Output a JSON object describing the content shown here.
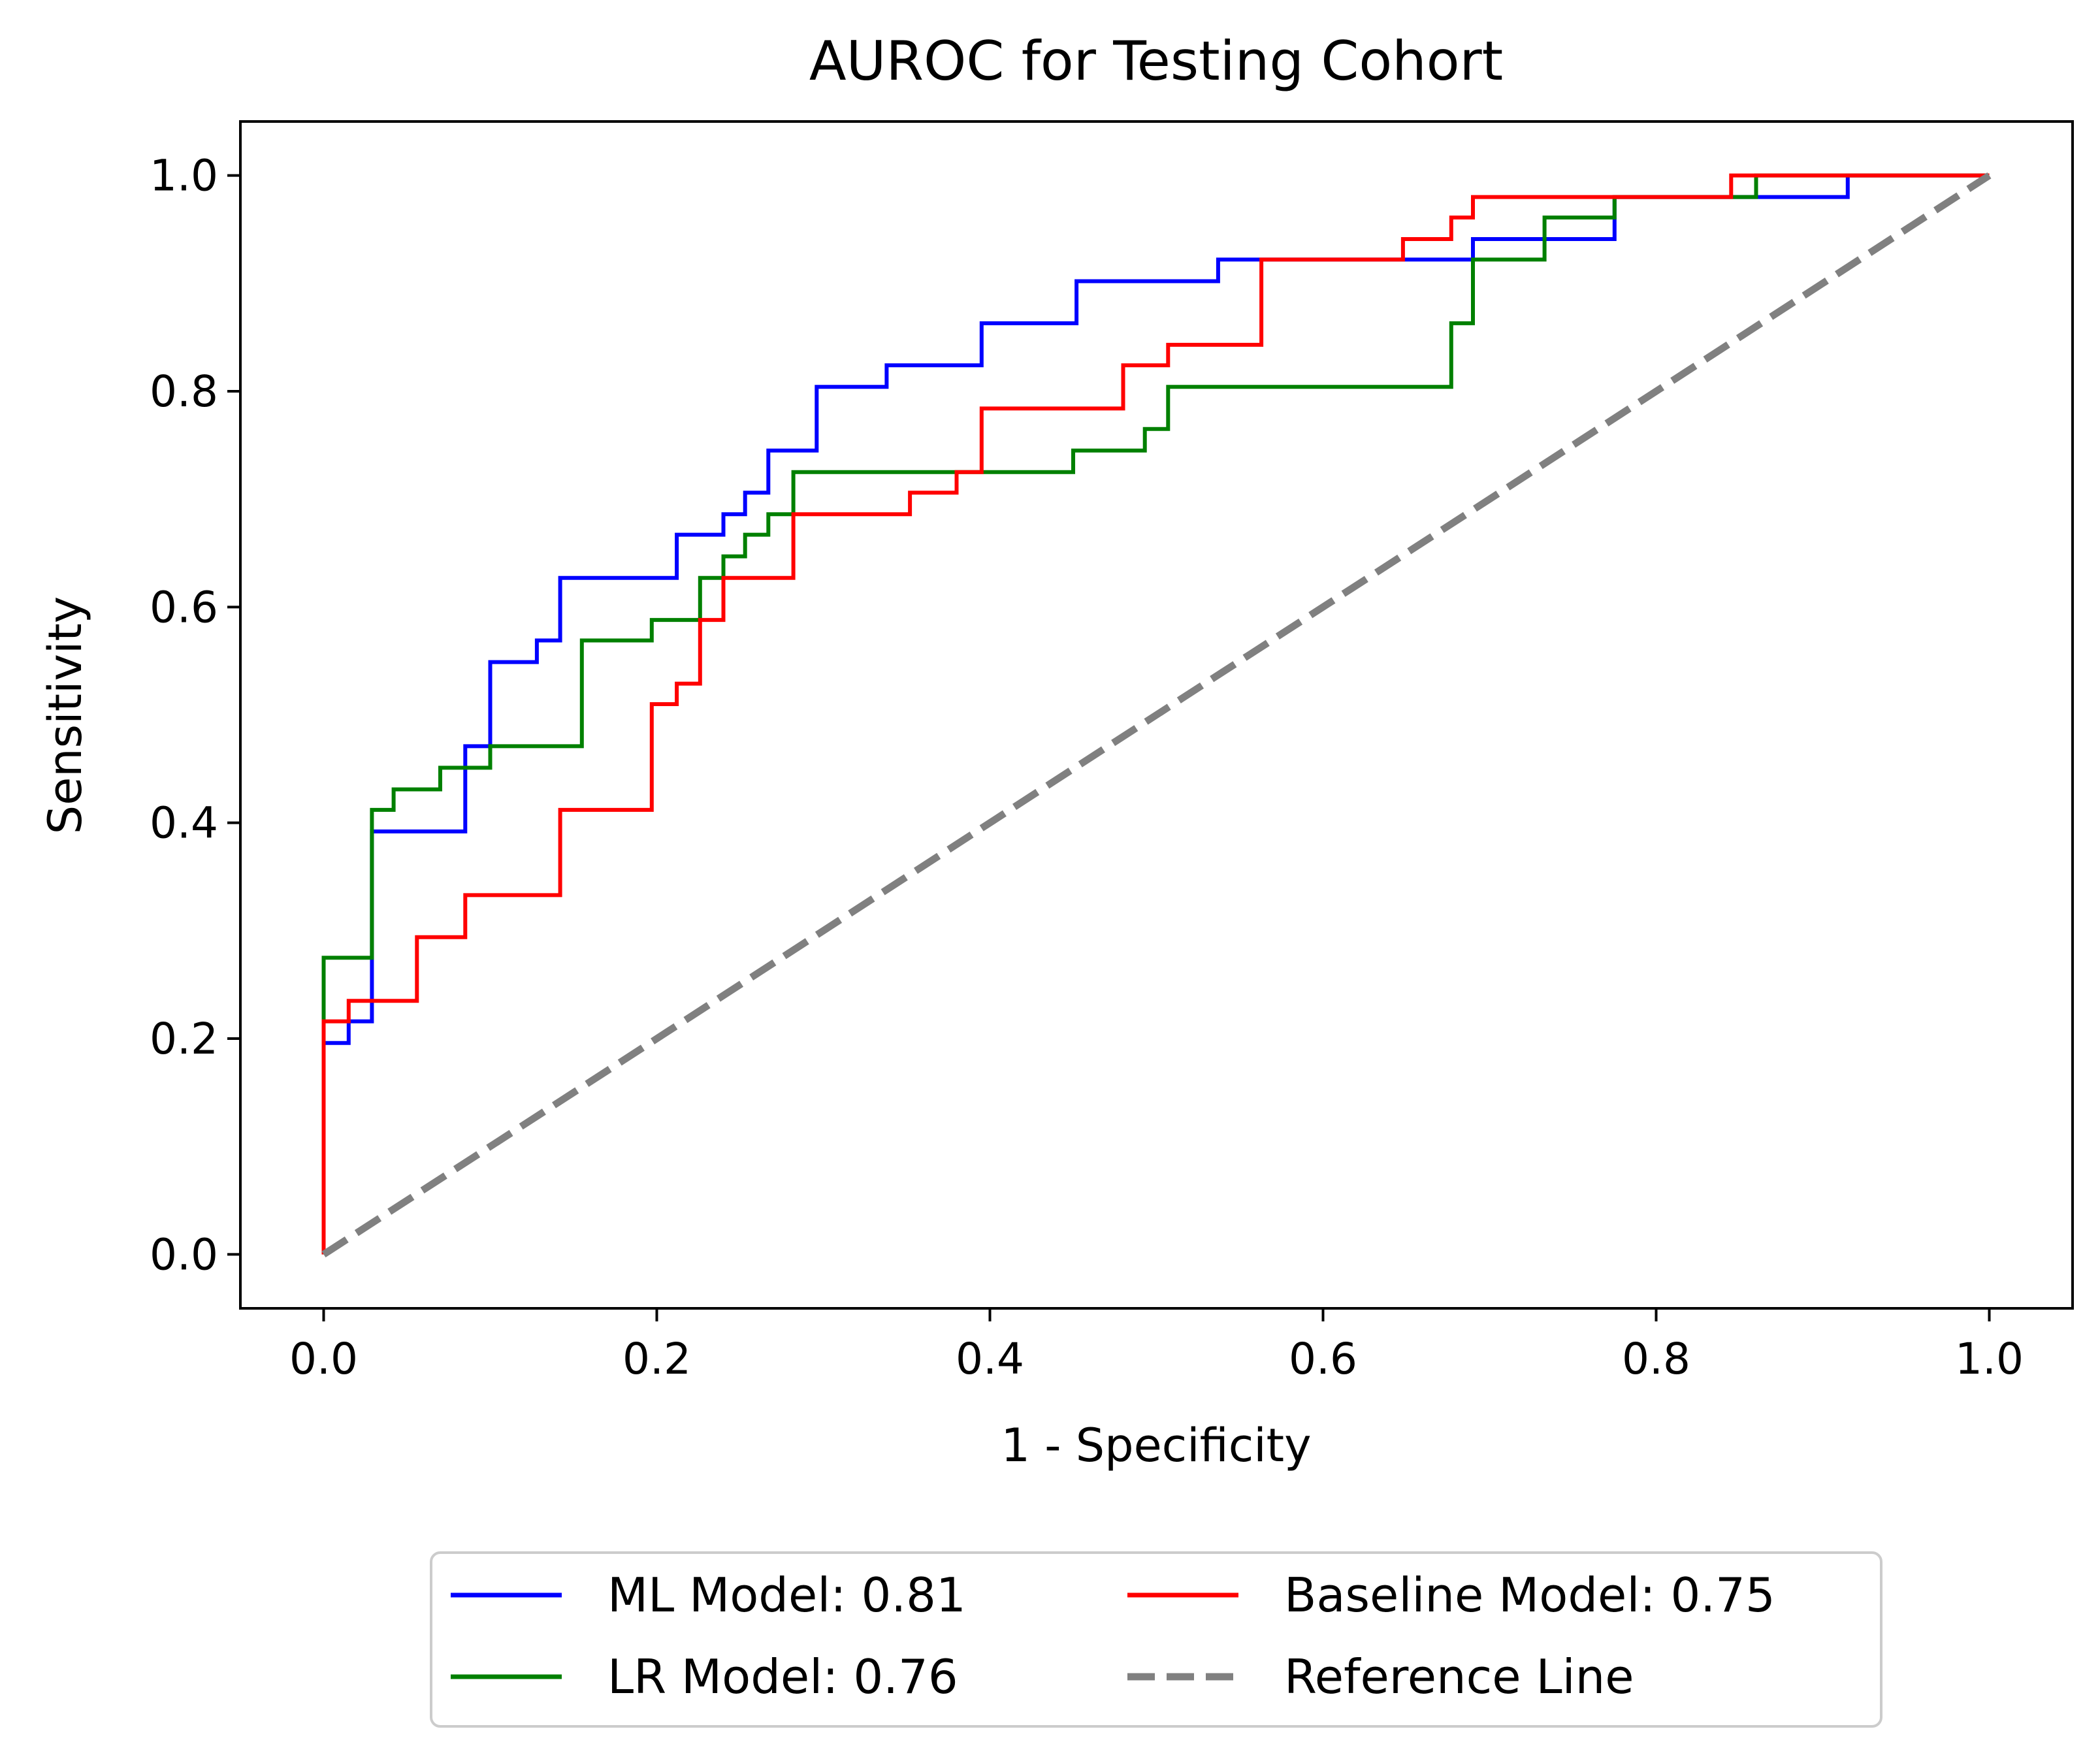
{
  "chart_data": {
    "type": "line",
    "title": "AUROC for Testing Cohort",
    "xlabel": "1 - Specificity",
    "ylabel": "Sensitivity",
    "xlim": [
      -0.05,
      1.05
    ],
    "ylim": [
      -0.05,
      1.05
    ],
    "x_ticks": [
      0.0,
      0.2,
      0.4,
      0.6,
      0.8,
      1.0
    ],
    "y_ticks": [
      0.0,
      0.2,
      0.4,
      0.6,
      0.8,
      1.0
    ],
    "x_tick_labels": [
      "0.0",
      "0.2",
      "0.4",
      "0.6",
      "0.8",
      "1.0"
    ],
    "y_tick_labels": [
      "0.0",
      "0.2",
      "0.4",
      "0.6",
      "0.8",
      "1.0"
    ],
    "grid": false,
    "legend_placement": "bottom-center, below plot, two columns",
    "series": [
      {
        "name": "ML Model: 0.81",
        "color": "#0000ff",
        "style": "solid",
        "x": [
          0,
          0,
          0.015,
          0.015,
          0.029,
          0.029,
          0.085,
          0.085,
          0.1,
          0.1,
          0.128,
          0.128,
          0.142,
          0.142,
          0.212,
          0.212,
          0.24,
          0.24,
          0.253,
          0.253,
          0.267,
          0.267,
          0.296,
          0.296,
          0.338,
          0.338,
          0.395,
          0.395,
          0.452,
          0.452,
          0.537,
          0.537,
          0.69,
          0.69,
          0.775,
          0.775,
          0.86,
          0.86,
          0.915,
          0.915,
          1.0
        ],
        "y": [
          0,
          0.196,
          0.196,
          0.216,
          0.216,
          0.392,
          0.392,
          0.471,
          0.471,
          0.549,
          0.549,
          0.569,
          0.569,
          0.627,
          0.627,
          0.667,
          0.667,
          0.686,
          0.686,
          0.706,
          0.706,
          0.745,
          0.745,
          0.804,
          0.804,
          0.824,
          0.824,
          0.863,
          0.863,
          0.902,
          0.902,
          0.922,
          0.922,
          0.941,
          0.941,
          0.98,
          0.98,
          0.98,
          0.98,
          1.0,
          1.0
        ]
      },
      {
        "name": "LR Model: 0.76",
        "color": "#008000",
        "style": "solid",
        "x": [
          0,
          0,
          0.029,
          0.029,
          0.042,
          0.042,
          0.07,
          0.07,
          0.1,
          0.1,
          0.155,
          0.155,
          0.197,
          0.197,
          0.226,
          0.226,
          0.24,
          0.24,
          0.253,
          0.253,
          0.267,
          0.267,
          0.282,
          0.282,
          0.45,
          0.45,
          0.493,
          0.493,
          0.507,
          0.507,
          0.677,
          0.677,
          0.69,
          0.69,
          0.733,
          0.733,
          0.775,
          0.775,
          0.86,
          0.86,
          1.0
        ],
        "y": [
          0,
          0.275,
          0.275,
          0.412,
          0.412,
          0.431,
          0.431,
          0.451,
          0.451,
          0.471,
          0.471,
          0.569,
          0.569,
          0.588,
          0.588,
          0.627,
          0.627,
          0.647,
          0.647,
          0.667,
          0.667,
          0.686,
          0.686,
          0.725,
          0.725,
          0.745,
          0.745,
          0.765,
          0.765,
          0.804,
          0.804,
          0.863,
          0.863,
          0.922,
          0.922,
          0.961,
          0.961,
          0.98,
          0.98,
          1.0,
          1.0
        ]
      },
      {
        "name": "Baseline Model: 0.75",
        "color": "#ff0000",
        "style": "solid",
        "x": [
          0,
          0,
          0.015,
          0.015,
          0.056,
          0.056,
          0.085,
          0.085,
          0.142,
          0.142,
          0.197,
          0.197,
          0.212,
          0.212,
          0.226,
          0.226,
          0.24,
          0.24,
          0.282,
          0.282,
          0.352,
          0.352,
          0.38,
          0.38,
          0.395,
          0.395,
          0.48,
          0.48,
          0.507,
          0.507,
          0.563,
          0.563,
          0.648,
          0.648,
          0.677,
          0.677,
          0.69,
          0.69,
          0.845,
          0.845,
          1.0
        ],
        "y": [
          0,
          0.216,
          0.216,
          0.235,
          0.235,
          0.294,
          0.294,
          0.333,
          0.333,
          0.412,
          0.412,
          0.51,
          0.51,
          0.529,
          0.529,
          0.588,
          0.588,
          0.627,
          0.627,
          0.686,
          0.686,
          0.706,
          0.706,
          0.725,
          0.725,
          0.784,
          0.784,
          0.824,
          0.824,
          0.843,
          0.843,
          0.922,
          0.922,
          0.941,
          0.941,
          0.961,
          0.961,
          0.98,
          0.98,
          1.0,
          1.0
        ]
      },
      {
        "name": "Reference Line",
        "color": "#808080",
        "style": "dashed",
        "x": [
          0,
          1
        ],
        "y": [
          0,
          1
        ]
      }
    ]
  }
}
